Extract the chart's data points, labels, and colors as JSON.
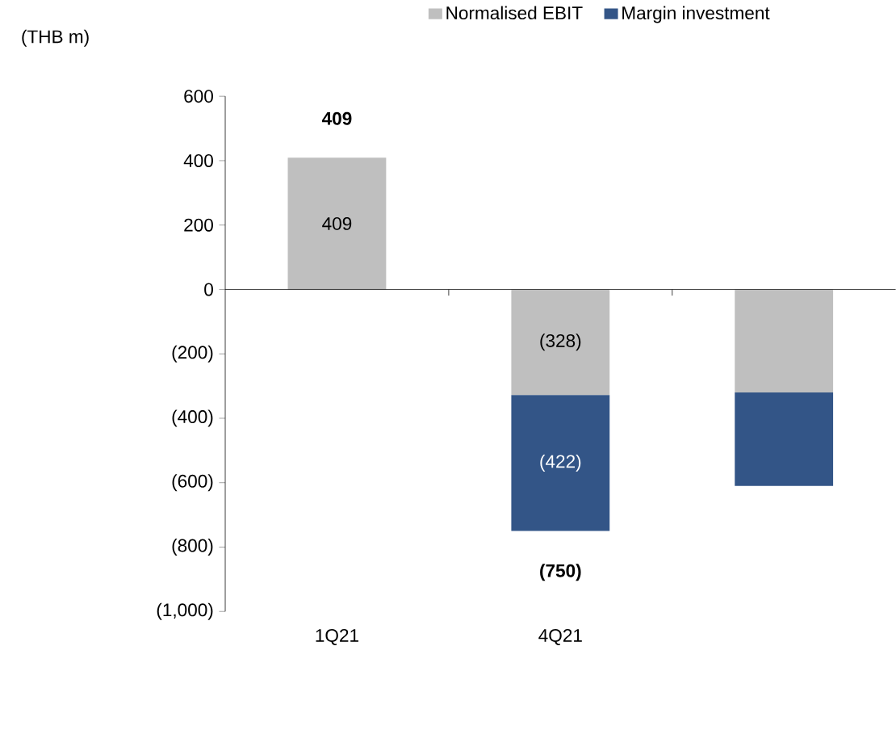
{
  "chart_data": {
    "type": "bar",
    "stacked": true,
    "annotations": [
      "(THB m)"
    ],
    "legend": "top",
    "categories": [
      "1Q21",
      "4Q21",
      null
    ],
    "series": [
      {
        "name": "Normalised EBIT",
        "color": "#bfbfbf",
        "values": [
          409,
          -328,
          -320
        ],
        "value_labels": [
          "409",
          "(328)",
          null
        ]
      },
      {
        "name": "Margin investment",
        "color": "#335587",
        "values": [
          null,
          -422,
          -290
        ],
        "value_labels": [
          null,
          "(422)",
          null
        ]
      }
    ],
    "totals": [
      "409",
      "(750)",
      null
    ],
    "ylim": [
      -1000,
      600
    ],
    "yticks": [
      {
        "value": -1000,
        "label": "(1,000)"
      },
      {
        "value": -800,
        "label": "(800)"
      },
      {
        "value": -600,
        "label": "(600)"
      },
      {
        "value": -400,
        "label": "(400)"
      },
      {
        "value": -200,
        "label": "(200)"
      },
      0,
      200,
      400,
      600
    ]
  }
}
